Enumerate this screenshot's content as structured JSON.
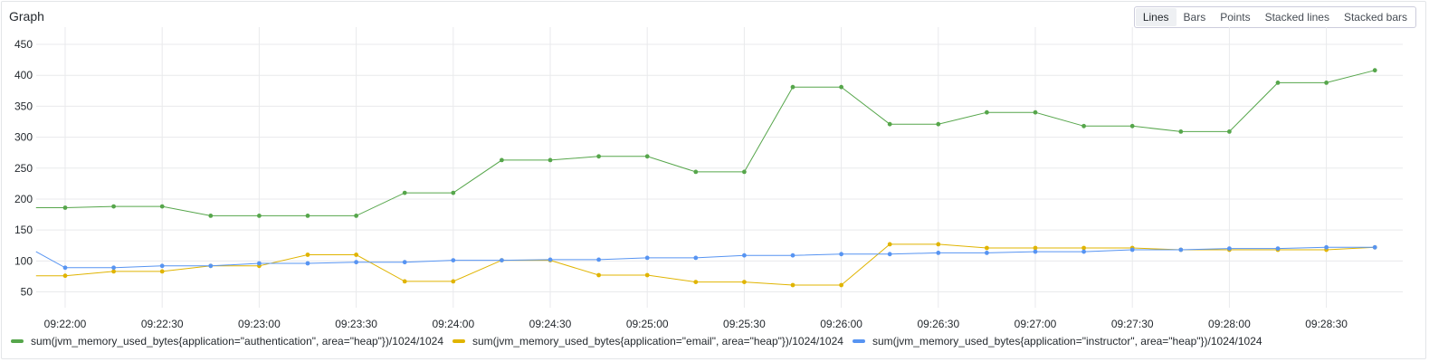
{
  "panel": {
    "title": "Graph",
    "view_options": [
      "Lines",
      "Bars",
      "Points",
      "Stacked lines",
      "Stacked bars"
    ],
    "active_view": "Lines"
  },
  "chart_data": {
    "type": "line",
    "title": "Graph",
    "xlabel": "",
    "ylabel": "",
    "ylim": [
      20,
      450
    ],
    "y_ticks": [
      50,
      100,
      150,
      200,
      250,
      300,
      350,
      400,
      450
    ],
    "x_ticks": [
      "09:22:00",
      "09:22:30",
      "09:23:00",
      "09:23:30",
      "09:24:00",
      "09:24:30",
      "09:25:00",
      "09:25:30",
      "09:26:00",
      "09:26:30",
      "09:27:00",
      "09:27:30",
      "09:28:00",
      "09:28:30"
    ],
    "x": [
      "09:21:51",
      "09:22:00",
      "09:22:15",
      "09:22:30",
      "09:22:45",
      "09:23:00",
      "09:23:15",
      "09:23:30",
      "09:23:45",
      "09:24:00",
      "09:24:15",
      "09:24:30",
      "09:24:45",
      "09:25:00",
      "09:25:15",
      "09:25:30",
      "09:25:45",
      "09:26:00",
      "09:26:15",
      "09:26:30",
      "09:26:45",
      "09:27:00",
      "09:27:15",
      "09:27:30",
      "09:27:45",
      "09:28:00",
      "09:28:15",
      "09:28:30",
      "09:28:45"
    ],
    "grid": true,
    "legend_position": "bottom",
    "series": [
      {
        "name": "sum(jvm_memory_used_bytes{application=\"authentication\", area=\"heap\"})/1024/1024",
        "color": "#56a64b",
        "values": [
          186,
          186,
          188,
          188,
          173,
          173,
          173,
          173,
          210,
          210,
          263,
          263,
          269,
          269,
          244,
          244,
          381,
          381,
          321,
          321,
          340,
          340,
          318,
          318,
          309,
          309,
          388,
          388,
          408
        ]
      },
      {
        "name": "sum(jvm_memory_used_bytes{application=\"email\", area=\"heap\"})/1024/1024",
        "color": "#e0b400",
        "values": [
          76,
          76,
          83,
          83,
          92,
          92,
          110,
          110,
          67,
          67,
          101,
          101,
          77,
          77,
          66,
          66,
          61,
          61,
          127,
          127,
          121,
          121,
          121,
          121,
          118,
          118,
          118,
          118,
          122
        ]
      },
      {
        "name": "sum(jvm_memory_used_bytes{application=\"instructor\", area=\"heap\"})/1024/1024",
        "color": "#5794f2",
        "values": [
          115,
          89,
          89,
          92,
          92,
          96,
          96,
          98,
          98,
          101,
          101,
          102,
          102,
          105,
          105,
          109,
          109,
          111,
          111,
          113,
          113,
          115,
          115,
          118,
          118,
          120,
          120,
          122,
          122
        ]
      }
    ]
  }
}
